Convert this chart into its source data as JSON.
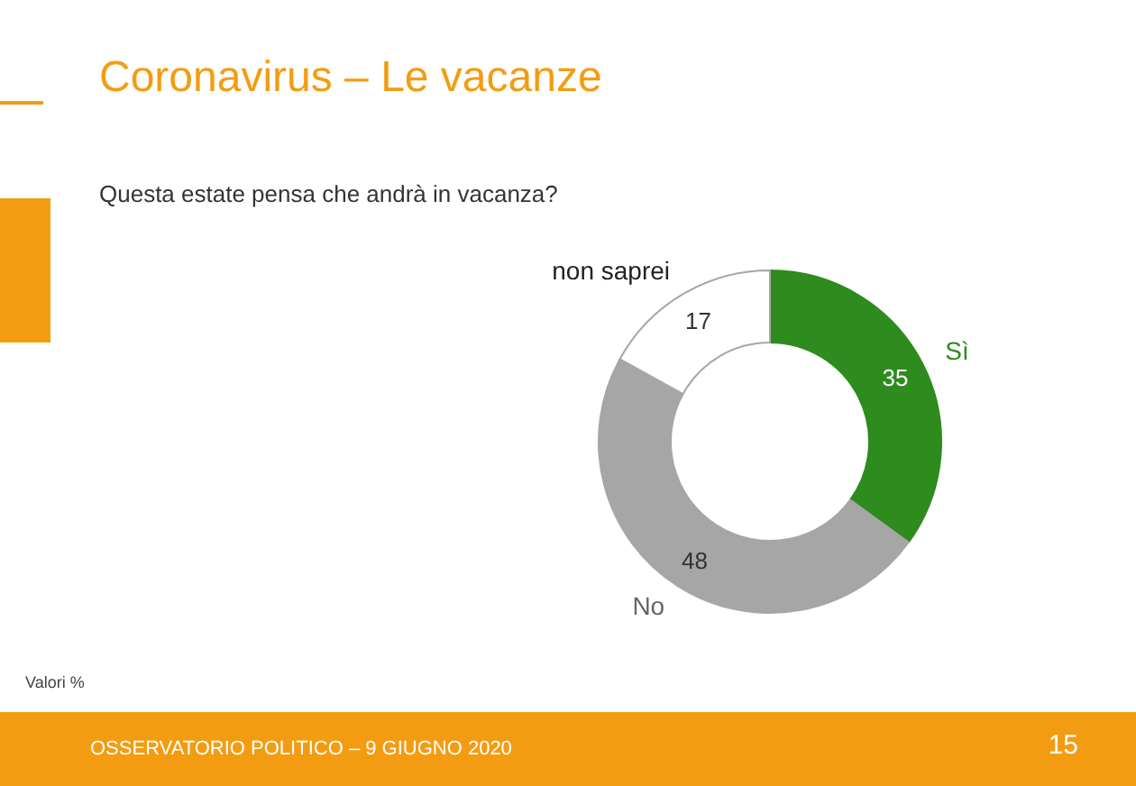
{
  "chart_data": {
    "type": "donut",
    "title": "Coronavirus – Le vacanze",
    "subtitle": "Questa estate pensa che andrà in vacanza?",
    "categories": [
      "Sì",
      "No",
      "non saprei"
    ],
    "values": [
      35,
      48,
      17
    ],
    "colors": [
      "#2e8b1e",
      "#a6a6a6",
      "#ffffff"
    ],
    "data_labels": true,
    "legend": false,
    "annotations": [
      "Valori %",
      "OSSERVATORIO POLITICO – 9 GIUGNO 2020",
      "15"
    ]
  }
}
